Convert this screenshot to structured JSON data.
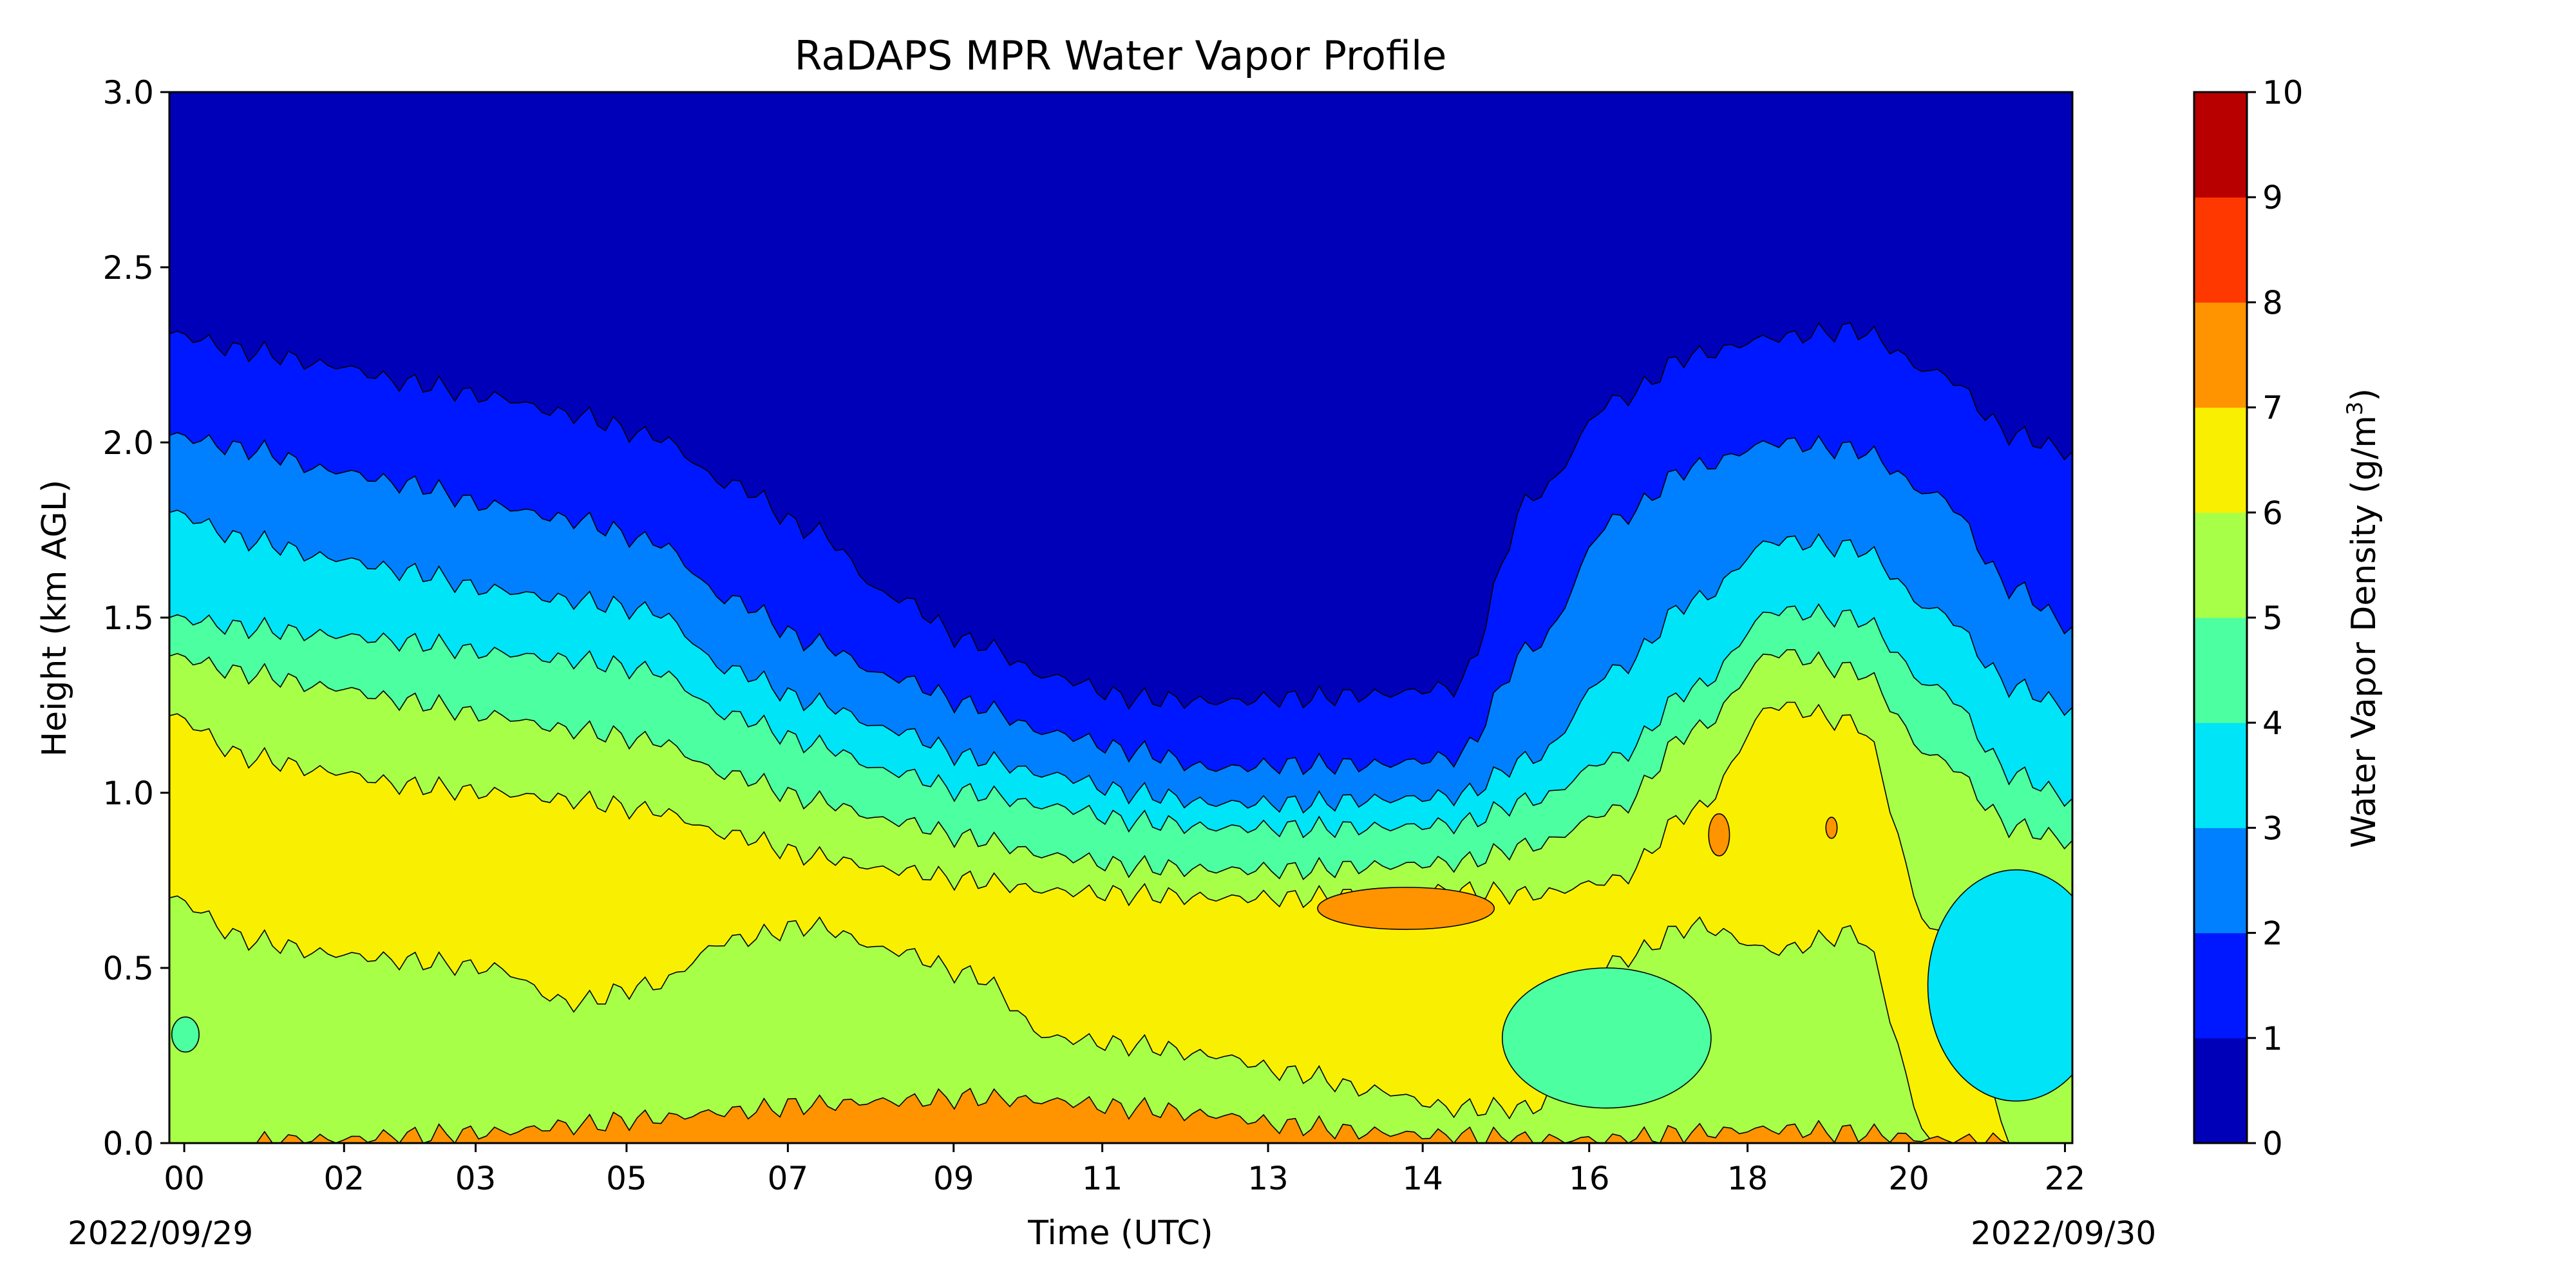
{
  "chart_data": {
    "type": "heatmap",
    "title": "RaDAPS MPR Water Vapor Profile",
    "xlabel": "Time (UTC)",
    "ylabel": "Height (km AGL)",
    "x_start_label": "2022/09/29",
    "x_end_label": "2022/09/30",
    "xticks": [
      "00",
      "02",
      "03",
      "05",
      "07",
      "09",
      "11",
      "13",
      "14",
      "16",
      "18",
      "20",
      "22"
    ],
    "yticks": [
      "0.0",
      "0.5",
      "1.0",
      "1.5",
      "2.0",
      "2.5",
      "3.0"
    ],
    "ylim": [
      0,
      3
    ],
    "colorbar": {
      "label": "Water Vapor Density (g/m",
      "label_sup": "3",
      "label_end": ")",
      "levels": [
        0,
        1,
        2,
        3,
        4,
        5,
        6,
        7,
        8,
        9,
        10
      ],
      "level_labels": [
        "0",
        "1",
        "2",
        "3",
        "4",
        "5",
        "6",
        "7",
        "8",
        "9",
        "10"
      ],
      "colors": [
        "#0000b8",
        "#0018ff",
        "#0080ff",
        "#00e4f8",
        "#4cffa0",
        "#a8ff48",
        "#f8f000",
        "#ff9400",
        "#ff3800",
        "#b80000"
      ]
    },
    "contour_boundaries": {
      "x_hours": [
        0,
        1,
        2,
        3,
        4,
        5,
        6,
        7,
        8,
        9,
        10,
        11,
        12,
        13,
        14,
        15,
        16,
        17,
        18,
        19,
        20,
        21,
        22,
        23,
        23.7
      ],
      "bands": [
        {
          "level": "1 g/m3",
          "heights_km": [
            2.31,
            2.26,
            2.22,
            2.17,
            2.13,
            2.08,
            2.02,
            1.88,
            1.75,
            1.56,
            1.43,
            1.33,
            1.27,
            1.26,
            1.27,
            1.28,
            1.3,
            1.85,
            2.12,
            2.25,
            2.3,
            2.32,
            2.2,
            2.02,
            1.97
          ]
        },
        {
          "level": "2 g/m3",
          "heights_km": [
            2.02,
            1.98,
            1.92,
            1.88,
            1.82,
            1.78,
            1.72,
            1.55,
            1.43,
            1.33,
            1.25,
            1.17,
            1.12,
            1.07,
            1.08,
            1.08,
            1.1,
            1.42,
            1.78,
            1.93,
            2.0,
            1.98,
            1.85,
            1.58,
            1.47
          ]
        },
        {
          "level": "3 g/m3",
          "heights_km": [
            1.8,
            1.72,
            1.67,
            1.63,
            1.58,
            1.55,
            1.52,
            1.35,
            1.26,
            1.18,
            1.1,
            1.05,
            1.0,
            0.97,
            0.97,
            0.98,
            0.99,
            1.1,
            1.35,
            1.55,
            1.72,
            1.7,
            1.52,
            1.3,
            1.24
          ]
        },
        {
          "level": "4 g/m3",
          "heights_km": [
            1.5,
            1.47,
            1.45,
            1.43,
            1.4,
            1.38,
            1.35,
            1.22,
            1.14,
            1.06,
            1.0,
            0.96,
            0.92,
            0.9,
            0.9,
            0.9,
            0.91,
            0.98,
            1.1,
            1.3,
            1.52,
            1.5,
            1.3,
            1.05,
            0.98
          ]
        },
        {
          "level": "5 g/m3",
          "heights_km": [
            1.39,
            1.34,
            1.3,
            1.26,
            1.22,
            1.18,
            1.15,
            1.05,
            0.98,
            0.92,
            0.87,
            0.82,
            0.79,
            0.78,
            0.78,
            0.79,
            0.8,
            0.85,
            0.95,
            1.18,
            1.4,
            1.35,
            1.1,
            0.9,
            0.86
          ]
        },
        {
          "level": "6 g/m3",
          "heights_km": [
            1.22,
            1.1,
            1.06,
            1.02,
            1.0,
            0.98,
            0.95,
            0.88,
            0.82,
            0.78,
            0.75,
            0.72,
            0.71,
            0.7,
            0.7,
            0.71,
            0.72,
            0.71,
            0.75,
            0.95,
            1.25,
            1.2,
            0.6,
            0.0,
            0.0
          ]
        },
        {
          "level": "6 g/m3 (lower edge)",
          "heights_km": [
            0.7,
            0.58,
            0.54,
            0.52,
            0.5,
            0.4,
            0.45,
            0.58,
            0.62,
            0.55,
            0.48,
            0.3,
            0.28,
            0.25,
            0.2,
            0.15,
            0.1,
            0.1,
            0.52,
            0.62,
            0.55,
            0.6,
            0.0,
            0.0,
            0.0
          ]
        },
        {
          "level": "7 g/m3",
          "heights_km": [
            0.0,
            0.0,
            0.01,
            0.02,
            0.03,
            0.05,
            0.07,
            0.09,
            0.11,
            0.12,
            0.13,
            0.12,
            0.1,
            0.08,
            0.05,
            0.03,
            0.02,
            0.01,
            0.01,
            0.03,
            0.04,
            0.03,
            0.01,
            0.0,
            0.0
          ]
        }
      ]
    }
  }
}
